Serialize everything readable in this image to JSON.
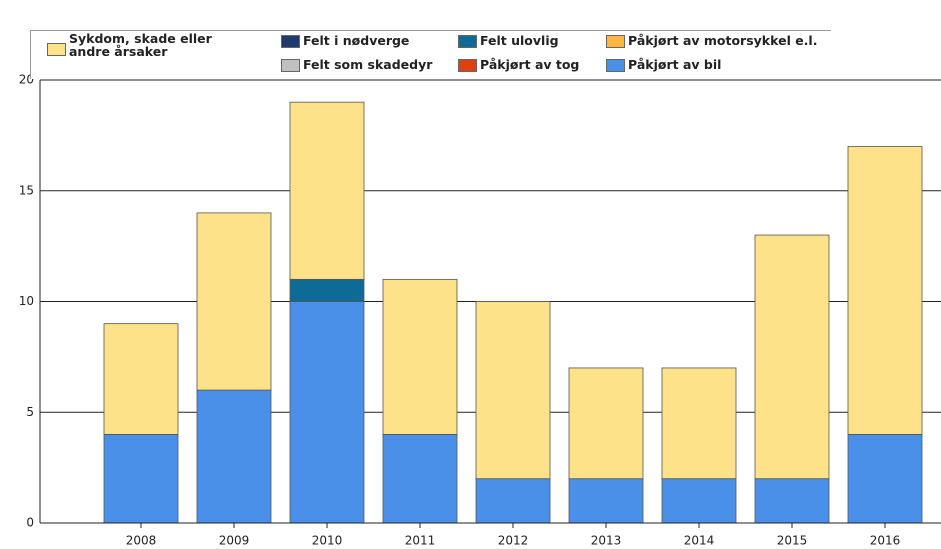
{
  "chart_data": {
    "type": "stacked_bar",
    "categories": [
      "2008",
      "2009",
      "2010",
      "2011",
      "2012",
      "2013",
      "2014",
      "2015",
      "2016"
    ],
    "series": [
      {
        "name": "Påkjørt av bil",
        "color": "#4a8fe8",
        "values": [
          4,
          6,
          10,
          4,
          2,
          2,
          2,
          2,
          4
        ]
      },
      {
        "name": "Påkjørt av tog",
        "color": "#e04010",
        "values": [
          0,
          0,
          0,
          0,
          0,
          0,
          0,
          0,
          0
        ]
      },
      {
        "name": "Påkjørt av motorsykkel e.l.",
        "color": "#fdb541",
        "values": [
          0,
          0,
          0,
          0,
          0,
          0,
          0,
          0,
          0
        ]
      },
      {
        "name": "Felt ulovlig",
        "color": "#0e6a96",
        "values": [
          0,
          0,
          1,
          0,
          0,
          0,
          0,
          0,
          0
        ]
      },
      {
        "name": "Felt i nødverge",
        "color": "#1f3b6e",
        "values": [
          0,
          0,
          0,
          0,
          0,
          0,
          0,
          0,
          0
        ]
      },
      {
        "name": "Felt som skadedyr",
        "color": "#c0c0c0",
        "values": [
          0,
          0,
          0,
          0,
          0,
          0,
          0,
          0,
          0
        ]
      },
      {
        "name": "Sykdom, skade eller andre årsaker",
        "color": "#fde28a",
        "values": [
          5,
          8,
          8,
          7,
          8,
          5,
          5,
          11,
          13
        ]
      }
    ],
    "ylim": [
      0,
      20
    ],
    "yticks": [
      0,
      5,
      10,
      15,
      20
    ],
    "grid": true
  }
}
